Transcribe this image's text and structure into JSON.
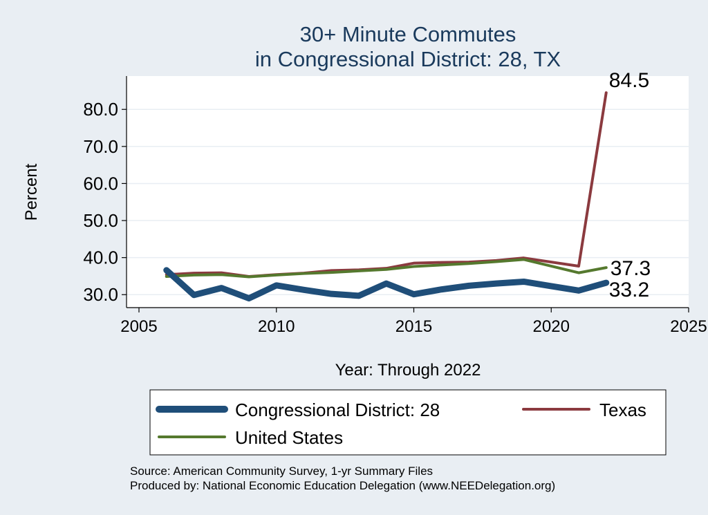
{
  "chart_data": {
    "type": "line",
    "title_lines": [
      "30+ Minute Commutes",
      "in Congressional District:  28, TX"
    ],
    "xlabel": "Year: Through 2022",
    "ylabel": "Percent",
    "xlim": [
      2005,
      2025
    ],
    "ylim": [
      26.5,
      89
    ],
    "x_ticks": [
      2005,
      2010,
      2015,
      2020,
      2025
    ],
    "y_ticks": [
      30,
      40,
      50,
      60,
      70,
      80
    ],
    "y_tick_labels": [
      "30.0",
      "40.0",
      "50.0",
      "60.0",
      "70.0",
      "80.0"
    ],
    "grid": true,
    "legend_position": "bottom",
    "series": [
      {
        "name": "Congressional District:  28",
        "color": "#1f4e79",
        "x": [
          2006,
          2007,
          2008,
          2009,
          2010,
          2011,
          2012,
          2013,
          2014,
          2015,
          2016,
          2017,
          2018,
          2019,
          2020,
          2021,
          2022
        ],
        "values": [
          36.6,
          29.9,
          31.8,
          29.0,
          32.5,
          31.3,
          30.2,
          29.7,
          33.0,
          30.1,
          31.4,
          32.4,
          33.0,
          33.5,
          32.3,
          31.1,
          33.2
        ],
        "end_label": "33.2"
      },
      {
        "name": "Texas",
        "color": "#8b3a3f",
        "x": [
          2006,
          2007,
          2008,
          2009,
          2010,
          2011,
          2012,
          2013,
          2014,
          2015,
          2016,
          2017,
          2018,
          2019,
          2021,
          2022
        ],
        "values": [
          35.4,
          35.8,
          35.9,
          34.9,
          35.4,
          35.8,
          36.5,
          36.7,
          37.1,
          38.5,
          38.7,
          38.8,
          39.2,
          39.9,
          37.7,
          84.5
        ],
        "end_label": "84.5"
      },
      {
        "name": "United States",
        "color": "#55792e",
        "x": [
          2006,
          2007,
          2008,
          2009,
          2010,
          2011,
          2012,
          2013,
          2014,
          2015,
          2016,
          2017,
          2018,
          2019,
          2021,
          2022
        ],
        "values": [
          34.9,
          35.3,
          35.4,
          34.8,
          35.3,
          35.7,
          36.0,
          36.4,
          36.8,
          37.6,
          38.0,
          38.4,
          38.9,
          39.5,
          35.9,
          37.3
        ],
        "end_label": "37.3"
      }
    ],
    "legend": [
      {
        "label": "Congressional District:  28",
        "color": "#1f4e79"
      },
      {
        "label": "Texas",
        "color": "#8b3a3f"
      },
      {
        "label": "United States",
        "color": "#55792e"
      }
    ]
  },
  "source_lines": [
    "Source: American Community Survey, 1-yr Summary Files",
    "Produced by: National Economic Education Delegation (www.NEEDelegation.org)"
  ]
}
